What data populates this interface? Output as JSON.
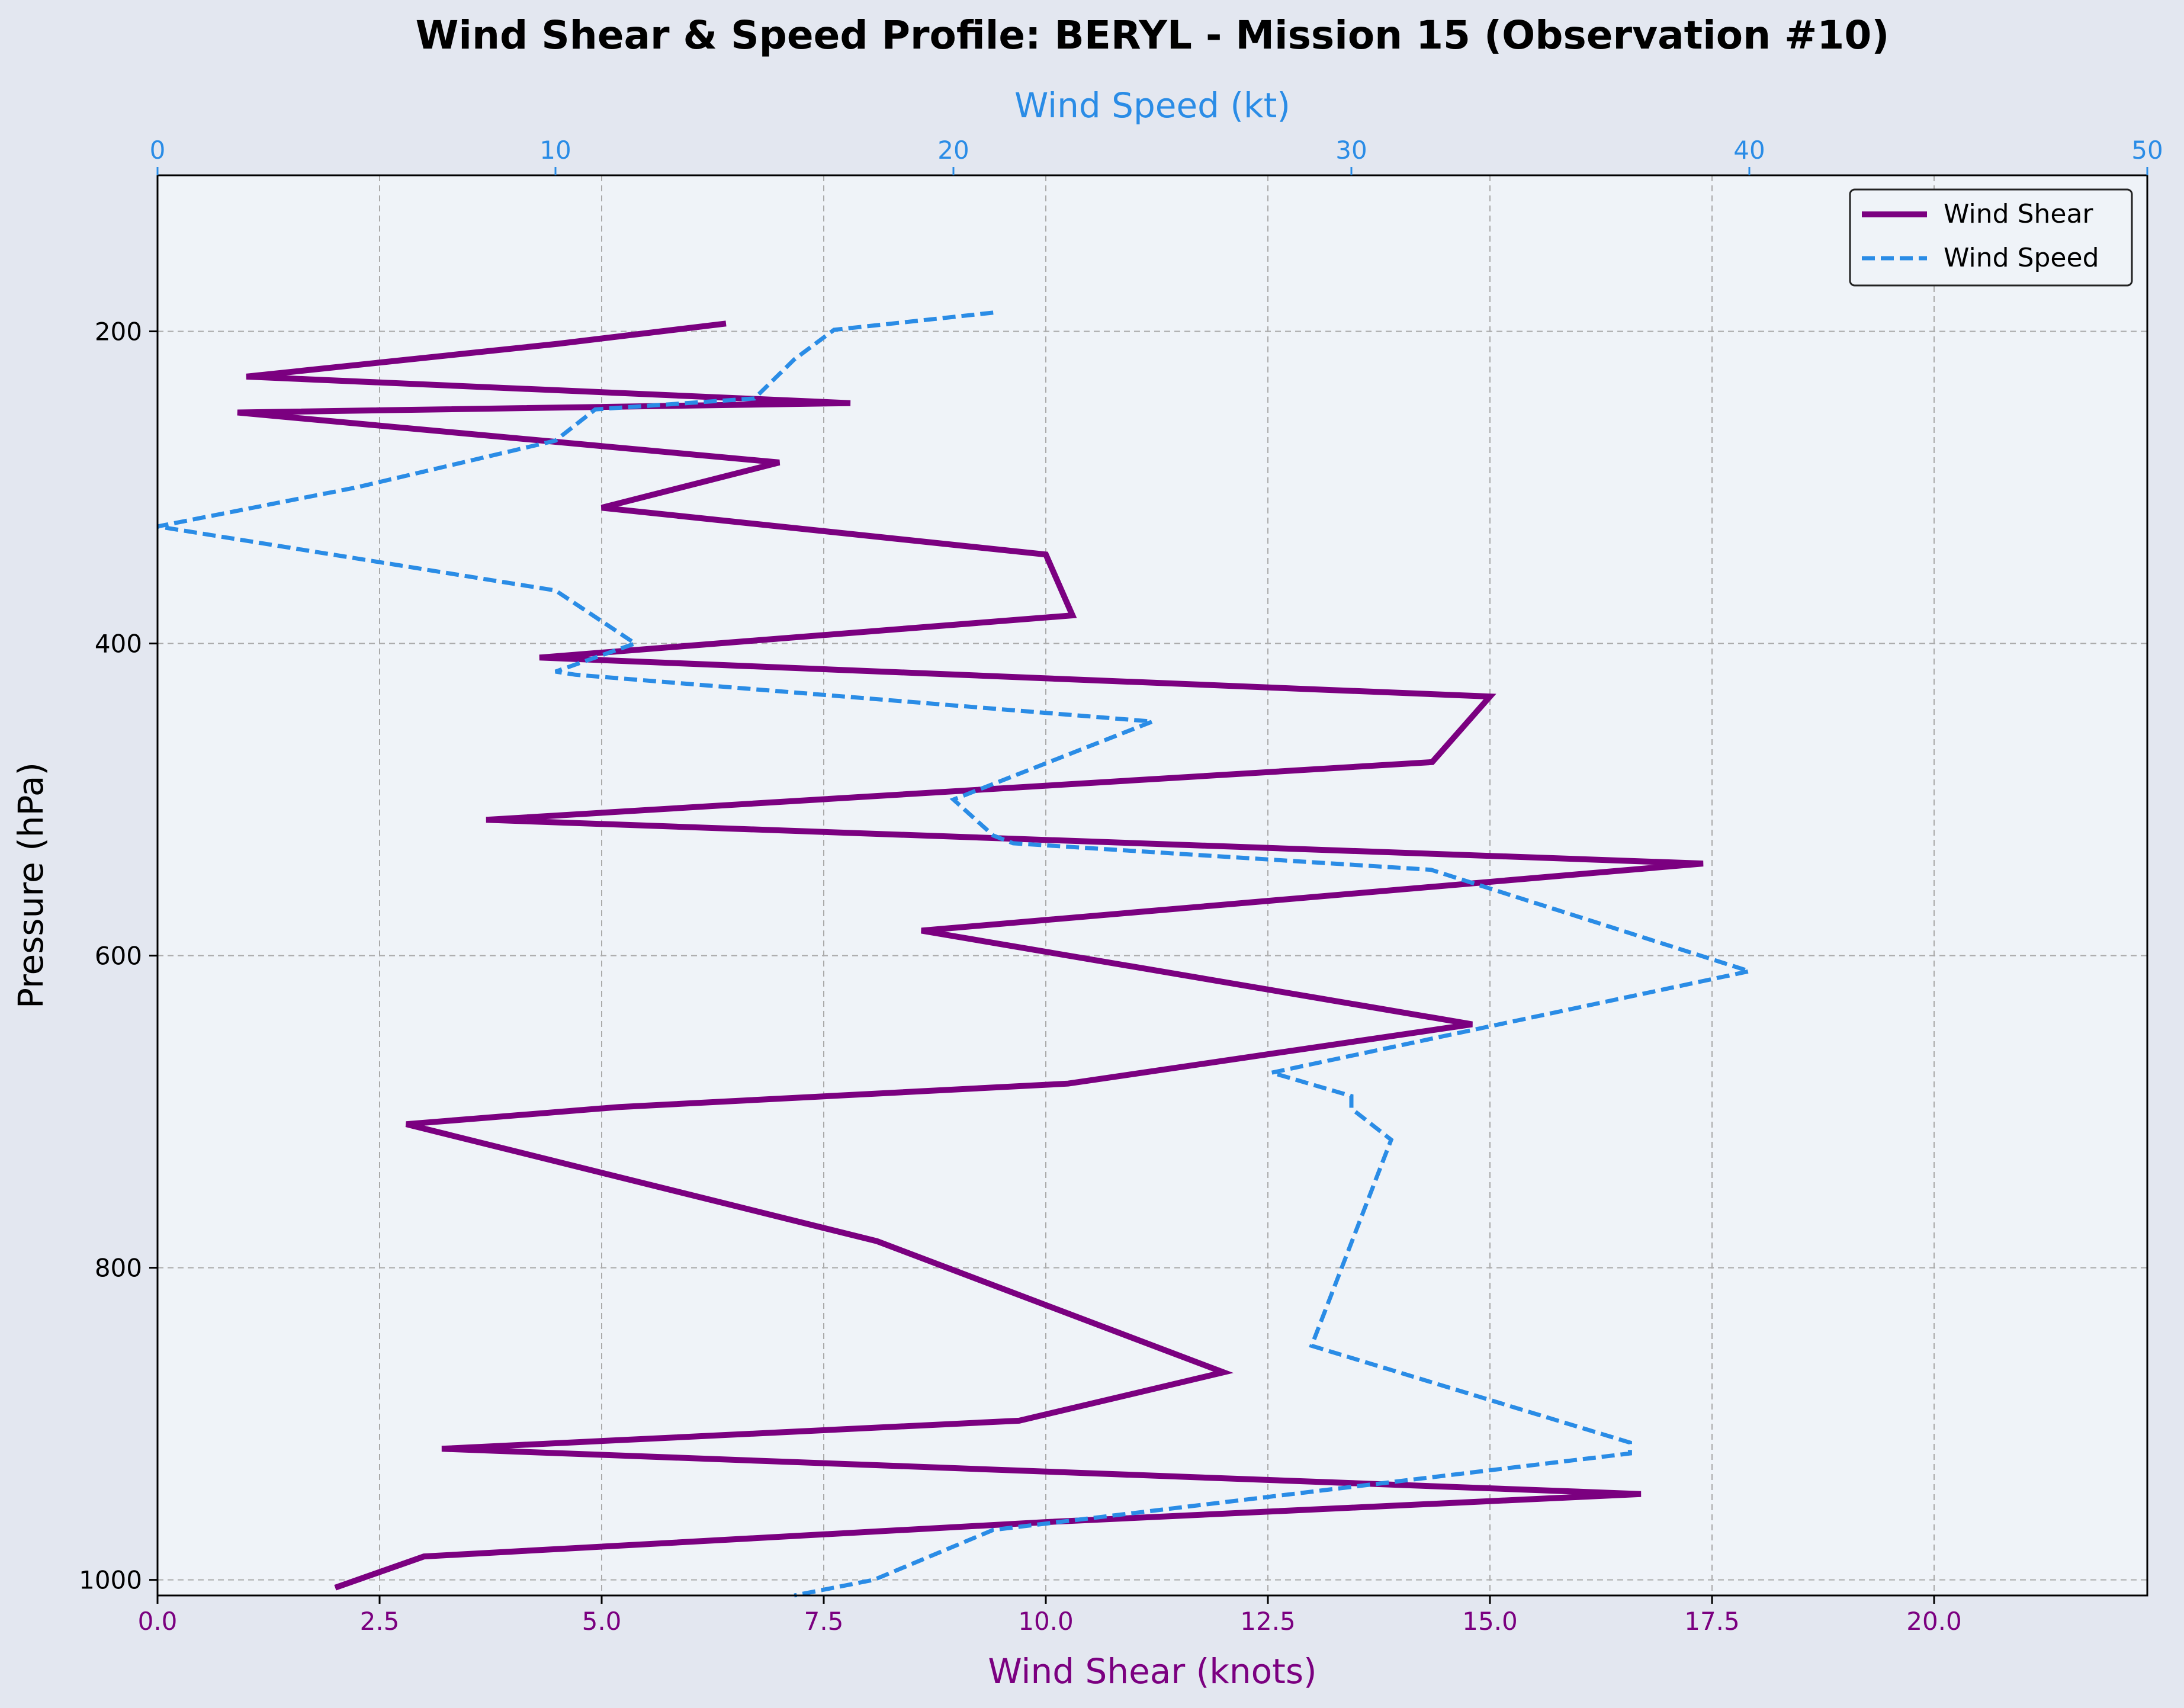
{
  "chart_data": {
    "type": "line",
    "title": "Wind Shear & Speed Profile: BERYL - Mission 15 (Observation #10)",
    "xlabel_bottom": "Wind Shear (knots)",
    "xlabel_top": "Wind Speed (kt)",
    "ylabel": "Pressure (hPa)",
    "y_inverted": true,
    "ylim": [
      1010,
      100
    ],
    "xlim_bottom": [
      0,
      22.4
    ],
    "xlim_top": [
      0,
      50
    ],
    "xticks_bottom": [
      "0.0",
      "2.5",
      "5.0",
      "7.5",
      "10.0",
      "12.5",
      "15.0",
      "17.5",
      "20.0"
    ],
    "xticks_top": [
      "0",
      "10",
      "20",
      "30",
      "40",
      "50"
    ],
    "yticks": [
      "200",
      "400",
      "600",
      "800",
      "1000"
    ],
    "grid": true,
    "legend_position": "top-right",
    "colors": {
      "figure_bg": "#e3e7f0",
      "axes_bg": "#eff3f8",
      "shear": "#7b0080",
      "speed": "#2a8ce6",
      "grid": "#aaaaaa"
    },
    "series": [
      {
        "name": "Wind Shear",
        "axis": "bottom",
        "style": "solid",
        "points": [
          {
            "x": 6.4,
            "p": 195
          },
          {
            "x": 4.5,
            "p": 208
          },
          {
            "x": 1.0,
            "p": 229
          },
          {
            "x": 7.8,
            "p": 246
          },
          {
            "x": 0.9,
            "p": 252
          },
          {
            "x": 7.0,
            "p": 284
          },
          {
            "x": 5.0,
            "p": 313
          },
          {
            "x": 10.0,
            "p": 343
          },
          {
            "x": 10.3,
            "p": 382
          },
          {
            "x": 4.3,
            "p": 409
          },
          {
            "x": 15.0,
            "p": 434
          },
          {
            "x": 14.35,
            "p": 476
          },
          {
            "x": 3.7,
            "p": 513
          },
          {
            "x": 17.4,
            "p": 541
          },
          {
            "x": 8.6,
            "p": 584
          },
          {
            "x": 14.8,
            "p": 644
          },
          {
            "x": 10.25,
            "p": 682
          },
          {
            "x": 5.2,
            "p": 697
          },
          {
            "x": 2.8,
            "p": 708
          },
          {
            "x": 8.1,
            "p": 783
          },
          {
            "x": 12.0,
            "p": 867
          },
          {
            "x": 9.7,
            "p": 898
          },
          {
            "x": 3.2,
            "p": 916
          },
          {
            "x": 16.7,
            "p": 945
          },
          {
            "x": 10.0,
            "p": 963
          },
          {
            "x": 3.0,
            "p": 985
          },
          {
            "x": 2.0,
            "p": 1005
          }
        ]
      },
      {
        "name": "Wind Speed",
        "axis": "top",
        "style": "dashed",
        "points": [
          {
            "x": 21.0,
            "p": 188
          },
          {
            "x": 17.0,
            "p": 199
          },
          {
            "x": 16.0,
            "p": 218
          },
          {
            "x": 15.0,
            "p": 243
          },
          {
            "x": 11.0,
            "p": 250
          },
          {
            "x": 10.0,
            "p": 270
          },
          {
            "x": 5.0,
            "p": 300
          },
          {
            "x": 0.0,
            "p": 325
          },
          {
            "x": 10.0,
            "p": 366
          },
          {
            "x": 12.0,
            "p": 400
          },
          {
            "x": 10.0,
            "p": 418
          },
          {
            "x": 10.5,
            "p": 420
          },
          {
            "x": 25.0,
            "p": 450
          },
          {
            "x": 20.0,
            "p": 500
          },
          {
            "x": 21.0,
            "p": 523
          },
          {
            "x": 21.5,
            "p": 528
          },
          {
            "x": 32.0,
            "p": 545
          },
          {
            "x": 40.0,
            "p": 610
          },
          {
            "x": 28.0,
            "p": 675
          },
          {
            "x": 30.0,
            "p": 690
          },
          {
            "x": 30.0,
            "p": 698
          },
          {
            "x": 31.0,
            "p": 718
          },
          {
            "x": 29.0,
            "p": 850
          },
          {
            "x": 37.0,
            "p": 912
          },
          {
            "x": 37.0,
            "p": 919
          },
          {
            "x": 21.0,
            "p": 968
          },
          {
            "x": 18.0,
            "p": 1000
          },
          {
            "x": 16.0,
            "p": 1010
          }
        ]
      }
    ]
  }
}
